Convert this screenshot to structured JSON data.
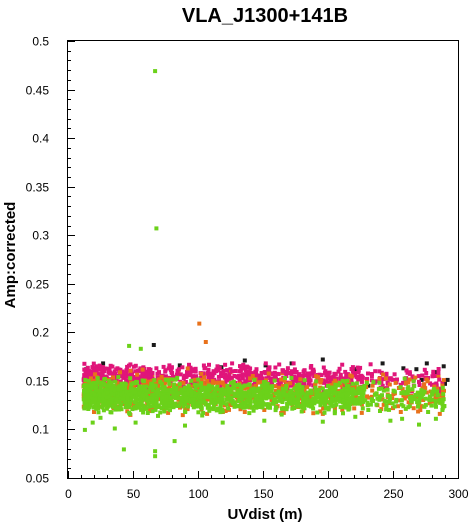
{
  "chart_data": {
    "type": "scatter",
    "title": "VLA_J1300+141B",
    "xlabel": "UVdist (m)",
    "ylabel": "Amp:corrected",
    "xlim": [
      0,
      300
    ],
    "ylim": [
      0.05,
      0.5
    ],
    "grid": false,
    "x_ticks": [
      "0",
      "50",
      "100",
      "150",
      "200",
      "250",
      "300"
    ],
    "y_ticks": [
      "0.05",
      "0.1",
      "0.15",
      "0.2",
      "0.25",
      "0.3",
      "0.35",
      "0.4",
      "0.45",
      "0.5"
    ],
    "x_tick_values": [
      0,
      50,
      100,
      150,
      200,
      250,
      300
    ],
    "y_tick_values": [
      0.05,
      0.1,
      0.15,
      0.2,
      0.25,
      0.3,
      0.35,
      0.4,
      0.45,
      0.5
    ],
    "series": [
      {
        "color": "#1a1a1a",
        "points": [
          [
            14,
            0.162
          ],
          [
            27,
            0.168
          ],
          [
            44,
            0.158
          ],
          [
            66,
            0.187
          ],
          [
            86,
            0.166
          ],
          [
            118,
            0.164
          ],
          [
            136,
            0.171
          ],
          [
            152,
            0.166
          ],
          [
            172,
            0.168
          ],
          [
            196,
            0.172
          ],
          [
            221,
            0.162
          ],
          [
            242,
            0.168
          ],
          [
            258,
            0.163
          ],
          [
            268,
            0.162
          ],
          [
            276,
            0.168
          ],
          [
            282,
            0.159
          ],
          [
            289,
            0.165
          ],
          [
            290,
            0.147
          ],
          [
            292,
            0.151
          ],
          [
            231,
            0.145
          ],
          [
            244,
            0.142
          ],
          [
            272,
            0.151
          ]
        ]
      },
      {
        "color": "#e0157a",
        "points": [
          [
            15,
            0.158
          ],
          [
            19,
            0.154
          ],
          [
            22,
            0.165
          ],
          [
            25,
            0.151
          ],
          [
            28,
            0.16
          ],
          [
            32,
            0.162
          ],
          [
            35,
            0.156
          ],
          [
            38,
            0.163
          ],
          [
            42,
            0.155
          ],
          [
            45,
            0.161
          ],
          [
            48,
            0.167
          ],
          [
            52,
            0.154
          ],
          [
            55,
            0.16
          ],
          [
            58,
            0.164
          ],
          [
            62,
            0.152
          ],
          [
            65,
            0.158
          ],
          [
            68,
            0.163
          ],
          [
            72,
            0.155
          ],
          [
            75,
            0.161
          ],
          [
            78,
            0.166
          ],
          [
            82,
            0.153
          ],
          [
            85,
            0.159
          ],
          [
            88,
            0.164
          ],
          [
            92,
            0.156
          ],
          [
            95,
            0.162
          ],
          [
            98,
            0.151
          ],
          [
            102,
            0.158
          ],
          [
            105,
            0.163
          ],
          [
            108,
            0.154
          ],
          [
            112,
            0.16
          ],
          [
            115,
            0.165
          ],
          [
            118,
            0.157
          ],
          [
            122,
            0.152
          ],
          [
            125,
            0.162
          ],
          [
            128,
            0.155
          ],
          [
            132,
            0.16
          ],
          [
            135,
            0.163
          ],
          [
            138,
            0.153
          ],
          [
            142,
            0.158
          ],
          [
            145,
            0.162
          ],
          [
            148,
            0.154
          ],
          [
            152,
            0.159
          ],
          [
            155,
            0.164
          ],
          [
            158,
            0.152
          ],
          [
            162,
            0.157
          ],
          [
            165,
            0.161
          ],
          [
            168,
            0.155
          ],
          [
            172,
            0.16
          ],
          [
            175,
            0.152
          ],
          [
            178,
            0.157
          ],
          [
            182,
            0.161
          ],
          [
            185,
            0.154
          ],
          [
            188,
            0.158
          ],
          [
            192,
            0.152
          ],
          [
            195,
            0.156
          ],
          [
            198,
            0.16
          ],
          [
            202,
            0.153
          ],
          [
            206,
            0.157
          ],
          [
            210,
            0.151
          ],
          [
            214,
            0.155
          ],
          [
            218,
            0.15
          ],
          [
            222,
            0.154
          ],
          [
            226,
            0.149
          ],
          [
            230,
            0.152
          ],
          [
            236,
            0.148
          ],
          [
            240,
            0.153
          ],
          [
            246,
            0.147
          ],
          [
            250,
            0.151
          ],
          [
            256,
            0.146
          ],
          [
            260,
            0.15
          ],
          [
            266,
            0.145
          ],
          [
            270,
            0.149
          ],
          [
            275,
            0.152
          ],
          [
            280,
            0.146
          ],
          [
            283,
            0.155
          ],
          [
            288,
            0.148
          ],
          [
            21,
            0.149
          ],
          [
            39,
            0.147
          ],
          [
            57,
            0.151
          ],
          [
            79,
            0.149
          ],
          [
            97,
            0.15
          ],
          [
            117,
            0.148
          ],
          [
            137,
            0.149
          ],
          [
            157,
            0.147
          ],
          [
            177,
            0.148
          ]
        ]
      },
      {
        "color": "#e8711b",
        "points": [
          [
            101,
            0.209
          ],
          [
            106,
            0.19
          ],
          [
            14,
            0.14
          ],
          [
            18,
            0.135
          ],
          [
            22,
            0.145
          ],
          [
            26,
            0.13
          ],
          [
            30,
            0.142
          ],
          [
            34,
            0.138
          ],
          [
            38,
            0.148
          ],
          [
            42,
            0.133
          ],
          [
            46,
            0.141
          ],
          [
            50,
            0.146
          ],
          [
            54,
            0.136
          ],
          [
            58,
            0.143
          ],
          [
            62,
            0.131
          ],
          [
            66,
            0.139
          ],
          [
            70,
            0.147
          ],
          [
            74,
            0.134
          ],
          [
            78,
            0.142
          ],
          [
            82,
            0.137
          ],
          [
            86,
            0.144
          ],
          [
            90,
            0.132
          ],
          [
            94,
            0.14
          ],
          [
            98,
            0.145
          ],
          [
            102,
            0.135
          ],
          [
            106,
            0.141
          ],
          [
            110,
            0.148
          ],
          [
            114,
            0.133
          ],
          [
            118,
            0.139
          ],
          [
            122,
            0.144
          ],
          [
            126,
            0.136
          ],
          [
            130,
            0.142
          ],
          [
            134,
            0.131
          ],
          [
            138,
            0.138
          ],
          [
            142,
            0.145
          ],
          [
            146,
            0.134
          ],
          [
            150,
            0.14
          ],
          [
            154,
            0.146
          ],
          [
            158,
            0.137
          ],
          [
            162,
            0.143
          ],
          [
            166,
            0.132
          ],
          [
            170,
            0.139
          ],
          [
            174,
            0.144
          ],
          [
            178,
            0.135
          ],
          [
            182,
            0.141
          ],
          [
            186,
            0.133
          ],
          [
            190,
            0.139
          ],
          [
            194,
            0.143
          ],
          [
            198,
            0.134
          ],
          [
            202,
            0.14
          ],
          [
            206,
            0.145
          ],
          [
            210,
            0.136
          ],
          [
            214,
            0.141
          ],
          [
            218,
            0.132
          ],
          [
            222,
            0.138
          ],
          [
            226,
            0.143
          ],
          [
            230,
            0.134
          ],
          [
            234,
            0.14
          ],
          [
            238,
            0.125
          ],
          [
            242,
            0.131
          ],
          [
            246,
            0.136
          ],
          [
            250,
            0.122
          ],
          [
            254,
            0.13
          ],
          [
            258,
            0.135
          ],
          [
            262,
            0.128
          ],
          [
            268,
            0.133
          ],
          [
            272,
            0.124
          ],
          [
            276,
            0.138
          ],
          [
            282,
            0.131
          ],
          [
            288,
            0.127
          ],
          [
            20,
            0.118
          ],
          [
            35,
            0.122
          ],
          [
            48,
            0.115
          ],
          [
            63,
            0.12
          ],
          [
            77,
            0.117
          ],
          [
            92,
            0.121
          ],
          [
            107,
            0.116
          ],
          [
            121,
            0.119
          ],
          [
            136,
            0.118
          ],
          [
            151,
            0.12
          ],
          [
            166,
            0.117
          ],
          [
            181,
            0.119
          ],
          [
            196,
            0.116
          ],
          [
            211,
            0.12
          ],
          [
            226,
            0.117
          ],
          [
            241,
            0.121
          ],
          [
            256,
            0.118
          ],
          [
            271,
            0.12
          ],
          [
            286,
            0.116
          ],
          [
            25,
            0.157
          ],
          [
            45,
            0.159
          ],
          [
            65,
            0.156
          ],
          [
            85,
            0.158
          ],
          [
            105,
            0.157
          ],
          [
            125,
            0.159
          ],
          [
            145,
            0.156
          ],
          [
            165,
            0.158
          ],
          [
            185,
            0.155
          ],
          [
            205,
            0.157
          ],
          [
            225,
            0.154
          ],
          [
            245,
            0.156
          ],
          [
            265,
            0.153
          ],
          [
            285,
            0.155
          ]
        ]
      },
      {
        "color": "#6bd11a",
        "points": [
          [
            67,
            0.469
          ],
          [
            68,
            0.307
          ],
          [
            47,
            0.186
          ],
          [
            56,
            0.183
          ],
          [
            43,
            0.0795
          ],
          [
            67,
            0.0776
          ],
          [
            67,
            0.0724
          ],
          [
            82,
            0.088
          ],
          [
            13,
            0.0995
          ],
          [
            19,
            0.107
          ],
          [
            25,
            0.112
          ],
          [
            36,
            0.101
          ],
          [
            52,
            0.107
          ],
          [
            90,
            0.104
          ],
          [
            119,
            0.107
          ],
          [
            151,
            0.109
          ],
          [
            196,
            0.108
          ],
          [
            221,
            0.113
          ],
          [
            231,
            0.12
          ],
          [
            240,
            0.119
          ],
          [
            248,
            0.109
          ],
          [
            257,
            0.111
          ],
          [
            270,
            0.105
          ],
          [
            283,
            0.111
          ],
          [
            263,
            0.124
          ],
          [
            277,
            0.118
          ],
          [
            288,
            0.12
          ]
        ]
      }
    ]
  }
}
